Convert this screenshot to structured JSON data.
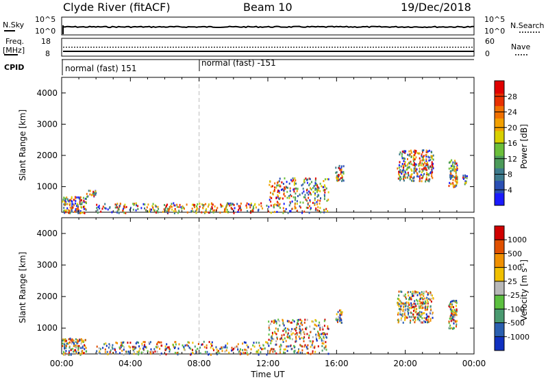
{
  "header": {
    "station": "Clyde River (fitACF)",
    "beam": "Beam 10",
    "date": "19/Dec/2018"
  },
  "colors": {
    "power_scale": [
      "#1a1aff",
      "#2a4fb3",
      "#3d7a8c",
      "#4c9b5a",
      "#6bbf3a",
      "#d8d000",
      "#f2a000",
      "#f07000",
      "#e83000",
      "#e00000"
    ],
    "velocity_scale": [
      "#1030c0",
      "#2a5fb0",
      "#4a9a70",
      "#5cc040",
      "#b8b8b8",
      "#f0c000",
      "#f09000",
      "#e05000",
      "#d00000"
    ]
  },
  "top_panels": {
    "nsky_label": "N.Sky",
    "nsky_ticks": [
      "10^5",
      "10^0"
    ],
    "nsearch_label": "N.Search",
    "nsearch_ticks": [
      "10^5",
      "10^0"
    ],
    "freq_label": "Freq.",
    "freq_unit": "[MHz]",
    "freq_ticks": [
      "18",
      "8"
    ],
    "nave_label": "Nave",
    "nave_ticks": [
      "60",
      "0"
    ],
    "cpid_label": "CPID",
    "cpid_segments": [
      "normal (fast) 151",
      "normal (fast) -151"
    ]
  },
  "chart_data": [
    {
      "type": "heatmap",
      "title": "",
      "xlabel": "Time UT",
      "ylabel": "Slant Range [km]",
      "xticks": [
        "00:00",
        "04:00",
        "08:00",
        "12:00",
        "16:00",
        "20:00",
        "00:00"
      ],
      "yticks": [
        "1000",
        "2000",
        "3000",
        "4000"
      ],
      "ylim": [
        180,
        4500
      ],
      "colorbar_label": "Power [dB]",
      "colorbar_ticks": [
        "28",
        "24",
        "20",
        "16",
        "12",
        "8",
        "4"
      ],
      "colorbar_range": [
        0,
        32
      ],
      "regions": [
        {
          "t": [
            0.0,
            1.4
          ],
          "r": [
            180,
            700
          ],
          "value": "12-28"
        },
        {
          "t": [
            1.4,
            2.0
          ],
          "r": [
            700,
            900
          ],
          "value": "16-24"
        },
        {
          "t": [
            2.0,
            12.0
          ],
          "r": [
            180,
            500
          ],
          "value": "4-20"
        },
        {
          "t": [
            12.0,
            15.5
          ],
          "r": [
            180,
            1300
          ],
          "value": "8-24"
        },
        {
          "t": [
            15.9,
            16.4
          ],
          "r": [
            1200,
            1700
          ],
          "value": "12-24"
        },
        {
          "t": [
            19.5,
            21.6
          ],
          "r": [
            1200,
            2200
          ],
          "value": "16-32"
        },
        {
          "t": [
            22.5,
            23.0
          ],
          "r": [
            1000,
            1900
          ],
          "value": "20-32"
        },
        {
          "t": [
            23.3,
            23.6
          ],
          "r": [
            1100,
            1400
          ],
          "value": "8-16"
        }
      ]
    },
    {
      "type": "heatmap",
      "title": "",
      "xlabel": "Time UT",
      "ylabel": "Slant Range [km]",
      "xticks": [
        "00:00",
        "04:00",
        "08:00",
        "12:00",
        "16:00",
        "20:00",
        "00:00"
      ],
      "yticks": [
        "1000",
        "2000",
        "3000",
        "4000"
      ],
      "ylim": [
        180,
        4500
      ],
      "colorbar_label": "Velocity [m s-1]",
      "colorbar_ticks": [
        "1000",
        "500",
        "100",
        "25",
        "-25",
        "-100",
        "-500",
        "-1000"
      ],
      "regions": [
        {
          "t": [
            0.0,
            1.4
          ],
          "r": [
            180,
            700
          ],
          "value": "-100 to 500"
        },
        {
          "t": [
            2.0,
            12.0
          ],
          "r": [
            180,
            600
          ],
          "value": "-100 to 100"
        },
        {
          "t": [
            12.0,
            15.5
          ],
          "r": [
            180,
            1300
          ],
          "value": "-100 to 500"
        },
        {
          "t": [
            15.9,
            16.3
          ],
          "r": [
            1200,
            1600
          ],
          "value": "-1000 to -500"
        },
        {
          "t": [
            19.5,
            21.6
          ],
          "r": [
            1200,
            2200
          ],
          "value": "-500 to -100"
        },
        {
          "t": [
            22.5,
            23.0
          ],
          "r": [
            1000,
            1900
          ],
          "value": "-500 to -100"
        }
      ]
    }
  ]
}
